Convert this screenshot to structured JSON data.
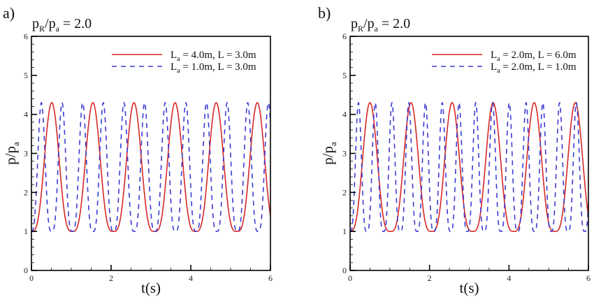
{
  "chart_data": [
    {
      "type": "line",
      "panel_label": "a)",
      "title": "p_R/p_a = 2.0",
      "title_parts": {
        "base1": "p",
        "sub1": "R",
        "sep": "/",
        "base2": "p",
        "sub2": "a",
        "rest": " = 2.0"
      },
      "xlabel": "t(s)",
      "ylabel": "p/p_a",
      "ylabel_parts": {
        "base": "p/p",
        "sub": "a"
      },
      "xlim": [
        0,
        6
      ],
      "ylim": [
        0,
        6
      ],
      "xticks": [
        0,
        2,
        4,
        6
      ],
      "xtick_labels": [
        "0",
        "2",
        "4",
        "6"
      ],
      "yticks": [
        0,
        1,
        2,
        3,
        4,
        5,
        6
      ],
      "ytick_labels": [
        "0",
        "1",
        "2",
        "3",
        "4",
        "5",
        "6"
      ],
      "x_minor_step": 0.5,
      "y_minor_step": 0.2,
      "grid": false,
      "legend_position": "top-right",
      "series": [
        {
          "name": "L_a = 4.0m, L = 3.0m",
          "label_parts": {
            "a": "L",
            "a_sub": "a",
            "rest": " = 4.0m, L = 3.0m"
          },
          "style": "solid",
          "color": "#d62728",
          "min": 1.0,
          "max": 4.3,
          "period_s": 1.032,
          "first_peak_t": 0.51,
          "peak_times": [
            0.51,
            1.55,
            2.58,
            3.61,
            4.65,
            5.67
          ]
        },
        {
          "name": "L_a = 1.0m, L = 3.0m",
          "label_parts": {
            "a": "L",
            "a_sub": "a",
            "rest": " = 1.0m, L = 3.0m"
          },
          "style": "dashed",
          "color": "#3b3bd6",
          "min": 1.0,
          "max": 4.3,
          "period_s": 0.518,
          "first_peak_t": 0.25,
          "peak_times": [
            0.25,
            0.77,
            1.28,
            1.8,
            2.32,
            2.84,
            3.36,
            3.87,
            4.39,
            4.91,
            5.42,
            5.94
          ]
        }
      ]
    },
    {
      "type": "line",
      "panel_label": "b)",
      "title": "p_R/p_a = 2.0",
      "title_parts": {
        "base1": "p",
        "sub1": "R",
        "sep": "/",
        "base2": "p",
        "sub2": "a",
        "rest": " = 2.0"
      },
      "xlabel": "t(s)",
      "ylabel": "p/p_a",
      "ylabel_parts": {
        "base": "p/p",
        "sub": "a"
      },
      "xlim": [
        0,
        6
      ],
      "ylim": [
        0,
        6
      ],
      "xticks": [
        0,
        2,
        4,
        6
      ],
      "xtick_labels": [
        "0",
        "2",
        "4",
        "6"
      ],
      "yticks": [
        0,
        1,
        2,
        3,
        4,
        5,
        6
      ],
      "ytick_labels": [
        "0",
        "1",
        "2",
        "3",
        "4",
        "5",
        "6"
      ],
      "x_minor_step": 0.5,
      "y_minor_step": 0.2,
      "grid": false,
      "legend_position": "top-right",
      "series": [
        {
          "name": "L_a = 2.0m, L = 6.0m",
          "label_parts": {
            "a": "L",
            "a_sub": "a",
            "rest": " = 2.0m, L = 6.0m"
          },
          "style": "solid",
          "color": "#d62728",
          "min": 1.0,
          "max": 4.3,
          "period_s": 1.034,
          "first_peak_t": 0.5,
          "peak_times": [
            0.5,
            1.54,
            2.57,
            3.6,
            4.64,
            5.67
          ]
        },
        {
          "name": "L_a = 2.0m, L = 1.0m",
          "label_parts": {
            "a": "L",
            "a_sub": "a",
            "rest": " = 2.0m, L = 1.0m"
          },
          "style": "dashed",
          "color": "#3b3bd6",
          "min": 1.0,
          "max": 4.3,
          "period_s": 0.422,
          "first_peak_t": 0.21,
          "peak_times": [
            0.21,
            0.63,
            1.06,
            1.48,
            1.9,
            2.32,
            2.74,
            3.16,
            3.58,
            4.01,
            4.43,
            4.85,
            5.27,
            5.69
          ]
        }
      ]
    }
  ]
}
